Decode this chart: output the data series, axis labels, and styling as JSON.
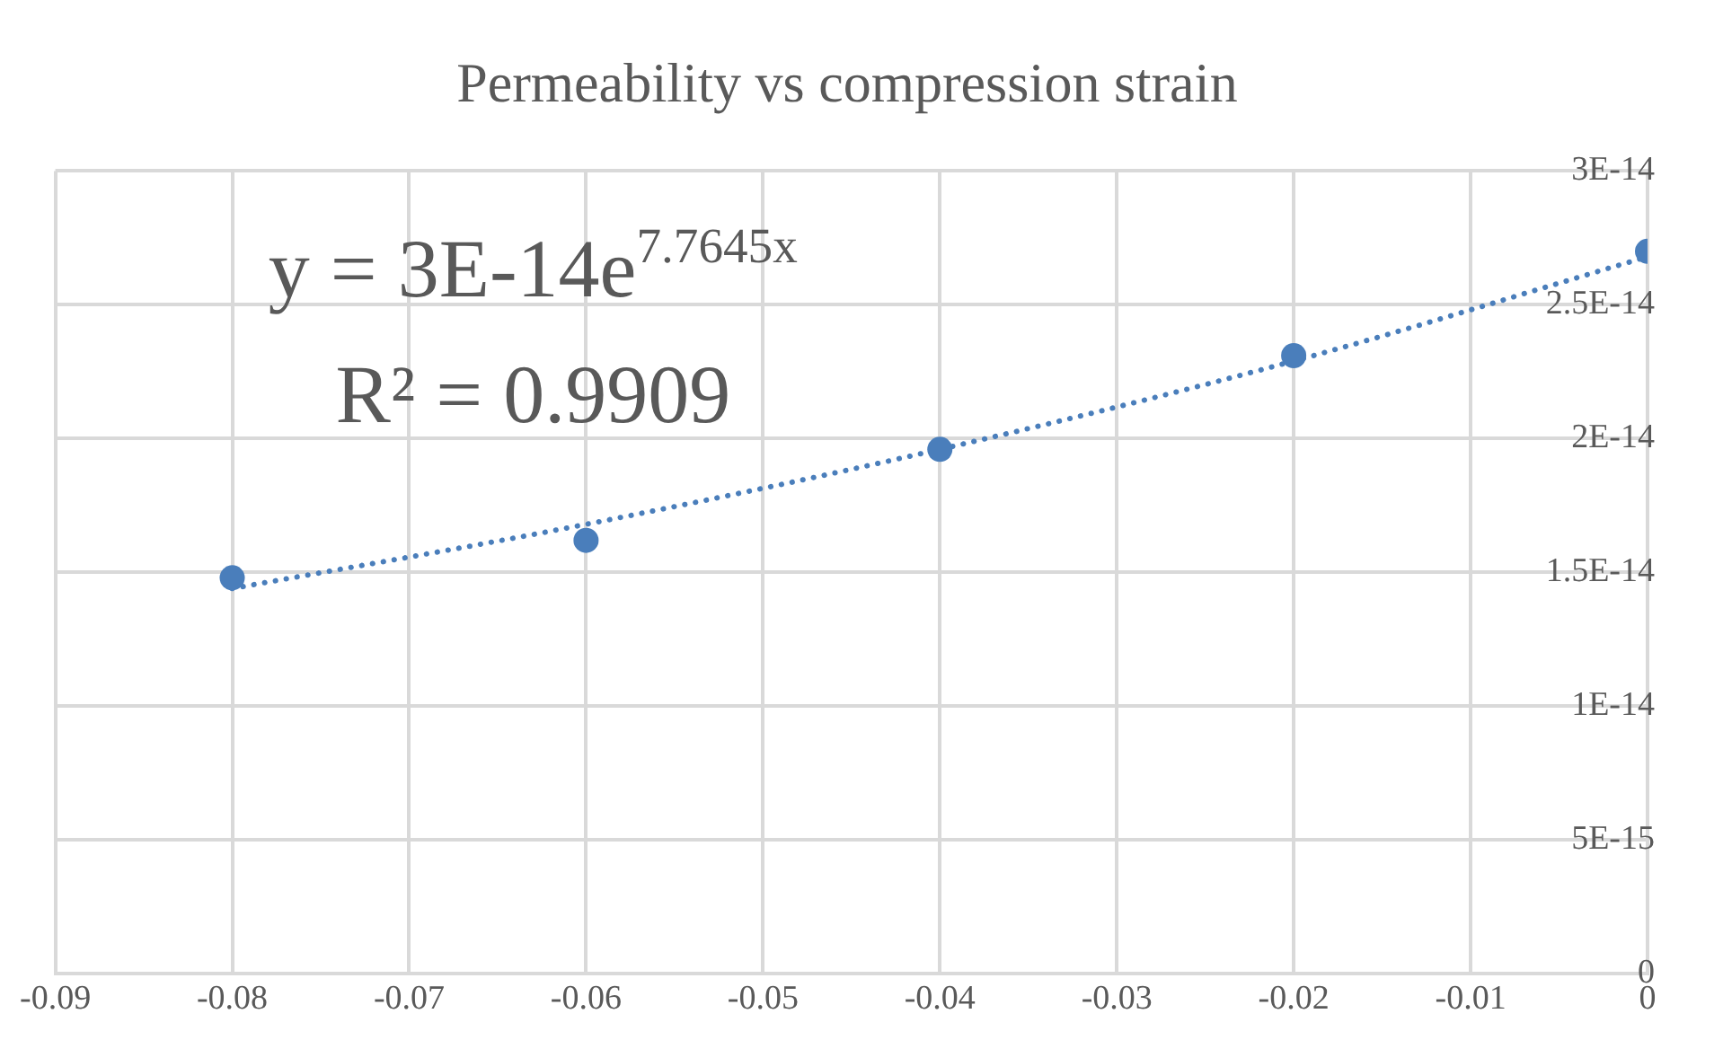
{
  "chart_data": {
    "type": "scatter",
    "title": "Permeability vs compression strain",
    "x": [
      -0.08,
      -0.06,
      -0.04,
      -0.02,
      0
    ],
    "series": [
      {
        "type": "scatter",
        "color": "#4a7ebb",
        "values": [
          1.48e-14,
          1.62e-14,
          1.96e-14,
          2.31e-14,
          2.7e-14
        ],
        "marker": "circle"
      },
      {
        "type": "line",
        "color": "#4a7ebb",
        "x": [
          -0.08,
          -0.06,
          -0.04,
          -0.02,
          0
        ],
        "values": [
          1.44e-14,
          1.68e-14,
          1.96e-14,
          2.29e-14,
          2.68e-14
        ],
        "line_style": "dotted",
        "marker": "none"
      }
    ],
    "xlim": [
      -0.09,
      0
    ],
    "xticks": [
      -0.09,
      -0.08,
      -0.07,
      -0.06,
      -0.05,
      -0.04,
      -0.03,
      -0.02,
      -0.01,
      0
    ],
    "ylim": [
      0,
      3e-14
    ],
    "yticks": [
      {
        "value": 0,
        "label": "0"
      },
      {
        "value": 5e-15,
        "label": "5E-15"
      },
      {
        "value": 1e-14,
        "label": "1E-14"
      },
      {
        "value": 1.5e-14,
        "label": "1.5E-14"
      },
      {
        "value": 2e-14,
        "label": "2E-14"
      },
      {
        "value": 2.5e-14,
        "label": "2.5E-14"
      },
      {
        "value": 3e-14,
        "label": "3E-14"
      }
    ],
    "grid": true,
    "annotations": [
      "y = 3E-14e$^{7.7645x}$",
      "R² = 0.9909"
    ]
  }
}
